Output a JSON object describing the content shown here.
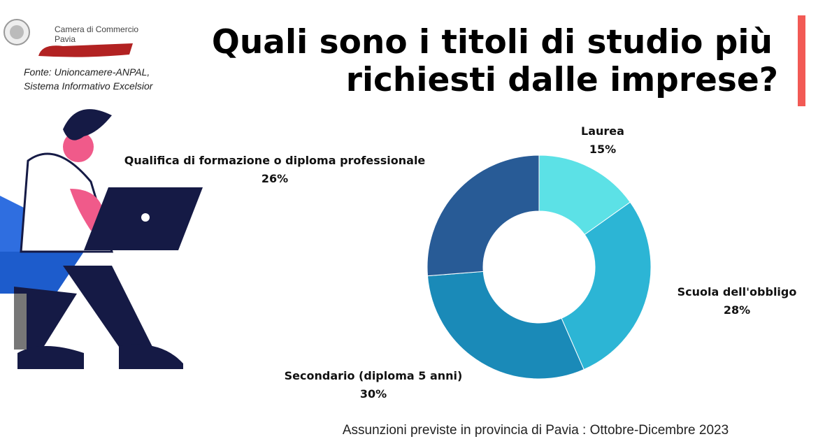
{
  "header": {
    "logo_lines": [
      "Camera di Commercio",
      "Pavia"
    ],
    "source_lines": [
      "Fonte: Unioncamere-ANPAL,",
      "Sistema Informativo Excelsior"
    ]
  },
  "chart_data": {
    "type": "donut",
    "title": [
      "Quali sono i titoli di studio più",
      "richiesti dalle imprese?"
    ],
    "caption": "Assunzioni previste in provincia di Pavia : Ottobre-Dicembre 2023",
    "categories": [
      "Laurea",
      "Scuola dell'obbligo",
      "Secondario (diploma 5 anni)",
      "Qualifica di formazione o diploma professionale"
    ],
    "values": [
      15,
      28,
      30,
      26
    ],
    "value_labels": [
      "15%",
      "28%",
      "30%",
      "26%"
    ],
    "colors": [
      "#5ce1e6",
      "#2cb5d5",
      "#1a8ab8",
      "#285b96"
    ]
  }
}
